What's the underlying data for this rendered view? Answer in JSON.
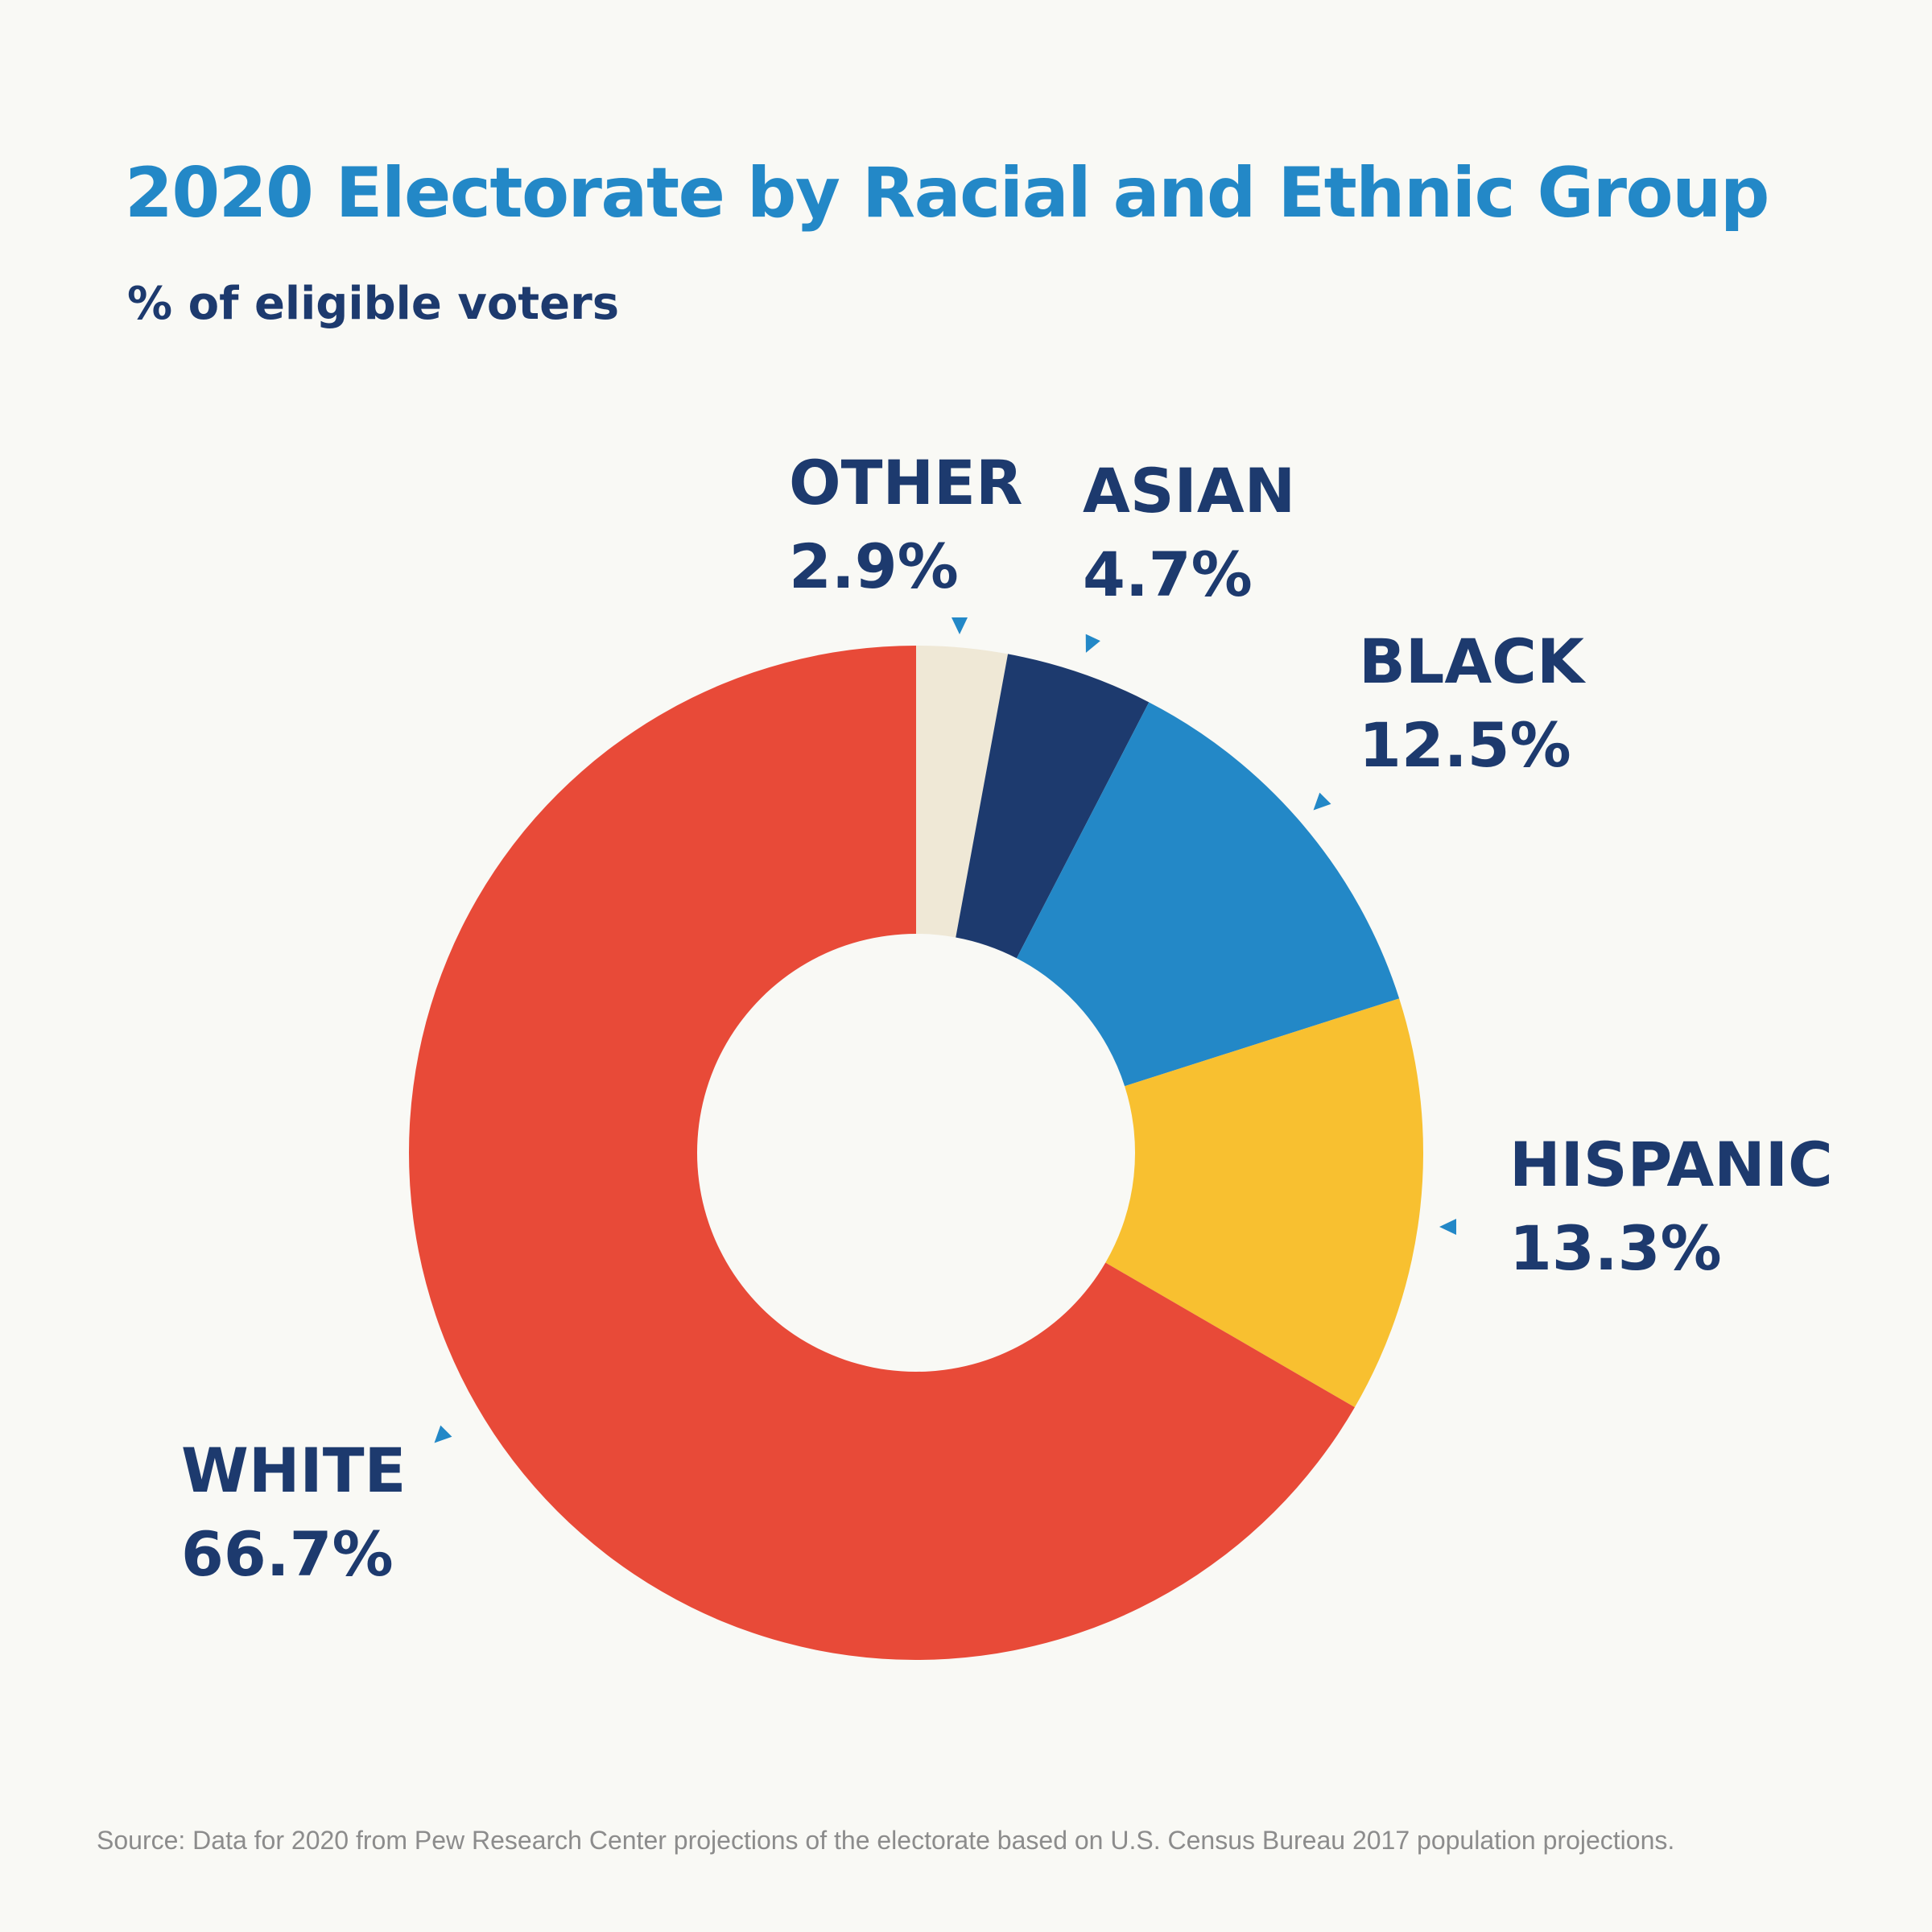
{
  "title": "2020 Electorate by Racial and Ethnic Group",
  "subtitle": "% of eligible voters",
  "source": "Source: Data for 2020 from Pew Research Center projections of the electorate based on U.S. Census Bureau 2017 population projections.",
  "colors": {
    "background": "#f9f9f5",
    "title": "#2388c7",
    "label": "#1d3a6e",
    "pointer": "#2388c7"
  },
  "chart_data": {
    "type": "pie",
    "style": "donut",
    "title": "2020 Electorate by Racial and Ethnic Group",
    "subtitle": "% of eligible voters",
    "unit": "%",
    "start": "12 o'clock",
    "direction": "clockwise",
    "slices": [
      {
        "name": "OTHER",
        "value": 2.9,
        "label": "2.9%",
        "color": "#efe8d6"
      },
      {
        "name": "ASIAN",
        "value": 4.7,
        "label": "4.7%",
        "color": "#1d3a6e"
      },
      {
        "name": "BLACK",
        "value": 12.5,
        "label": "12.5%",
        "color": "#2388c7"
      },
      {
        "name": "HISPANIC",
        "value": 13.3,
        "label": "13.3%",
        "color": "#f8c030"
      },
      {
        "name": "WHITE",
        "value": 66.7,
        "label": "66.7%",
        "color": "#e84a38"
      }
    ]
  }
}
